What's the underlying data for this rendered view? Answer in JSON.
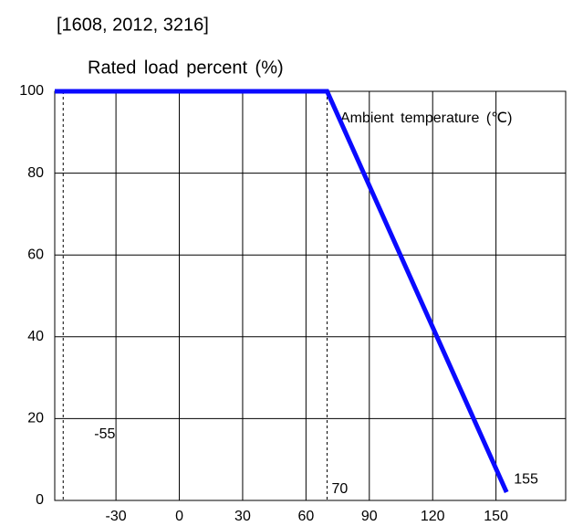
{
  "chart_data": {
    "type": "line",
    "title": "[1608,  2012,  3216]",
    "y_label": "Rated load percent (%)",
    "x_label": "Ambient temperature (℃)",
    "x": [
      -59,
      70,
      155
    ],
    "series": [
      {
        "color": "#0a0aff",
        "values": [
          100,
          100,
          2
        ]
      }
    ],
    "vlines": [
      -55,
      70
    ],
    "xlim": [
      -59,
      183
    ],
    "xticks": [
      -30,
      0,
      30,
      60,
      90,
      120,
      150
    ],
    "ylim": [
      0,
      100
    ],
    "yticks": [
      0,
      20,
      40,
      60,
      80,
      100
    ],
    "grid": true
  }
}
